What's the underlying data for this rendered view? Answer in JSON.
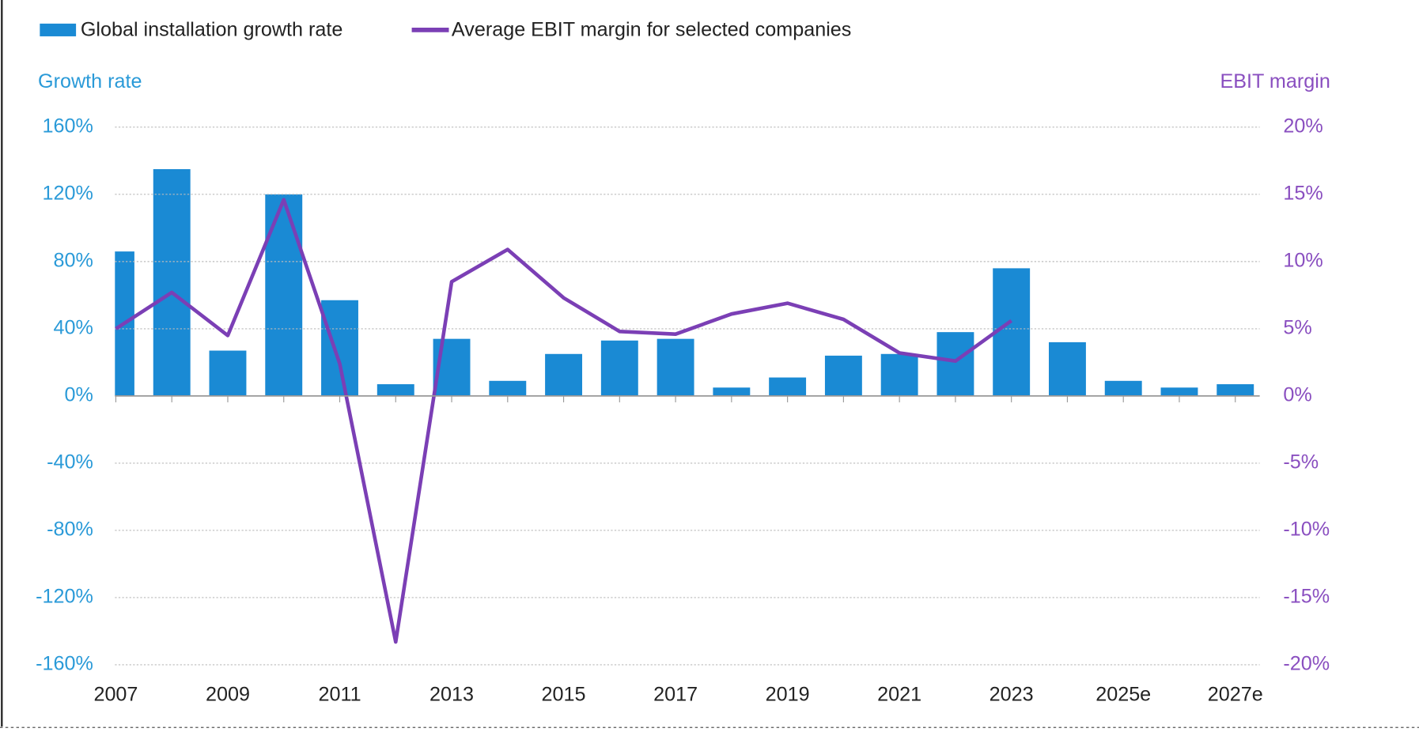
{
  "chart_data": {
    "type": "bar",
    "legend": [
      "Global installation growth rate",
      "Average EBIT margin for selected companies"
    ],
    "y_axis_title": "Growth rate",
    "y2_axis_title": "EBIT margin",
    "categories": [
      "2007",
      null,
      "2009",
      null,
      "2011",
      null,
      "2013",
      null,
      "2015",
      null,
      "2017",
      null,
      "2019",
      null,
      "2021",
      null,
      "2023",
      null,
      "2025e",
      null,
      "2027e"
    ],
    "series": [
      {
        "name": "Global installation growth rate",
        "type": "bar",
        "color": "#1a8ad4",
        "values": [
          86,
          135,
          27,
          120,
          57,
          7,
          34,
          9,
          25,
          33,
          34,
          5,
          11,
          24,
          25,
          38,
          76,
          32,
          9,
          5,
          7
        ]
      },
      {
        "name": "Average EBIT margin for selected companies",
        "type": "line",
        "axis": "y2",
        "color": "#7b3fb5",
        "values": [
          5.0,
          7.7,
          4.5,
          14.6,
          2.4,
          -18.3,
          8.5,
          10.9,
          7.3,
          4.8,
          4.6,
          6.1,
          6.9,
          5.7,
          3.2,
          2.6,
          5.6,
          null,
          null,
          null,
          null
        ]
      }
    ],
    "ylim": [
      -160,
      160
    ],
    "yticks": [
      {
        "value": -160,
        "label": "-160%"
      },
      {
        "value": -120,
        "label": "-120%"
      },
      {
        "value": -80,
        "label": "-80%"
      },
      {
        "value": -40,
        "label": "-40%"
      },
      {
        "value": 0,
        "label": "0%"
      },
      {
        "value": 40,
        "label": "40%"
      },
      {
        "value": 80,
        "label": "80%"
      },
      {
        "value": 120,
        "label": "120%"
      },
      {
        "value": 160,
        "label": "160%"
      }
    ],
    "y2lim": [
      -20,
      20
    ],
    "y2ticks": [
      {
        "value": -20,
        "label": "-20%"
      },
      {
        "value": -15,
        "label": "-15%"
      },
      {
        "value": -10,
        "label": "-10%"
      },
      {
        "value": -5,
        "label": "-5%"
      },
      {
        "value": 0,
        "label": "0%"
      },
      {
        "value": 5,
        "label": "5%"
      },
      {
        "value": 10,
        "label": "10%"
      },
      {
        "value": 15,
        "label": "15%"
      },
      {
        "value": 20,
        "label": "20%"
      }
    ],
    "grid": true
  }
}
